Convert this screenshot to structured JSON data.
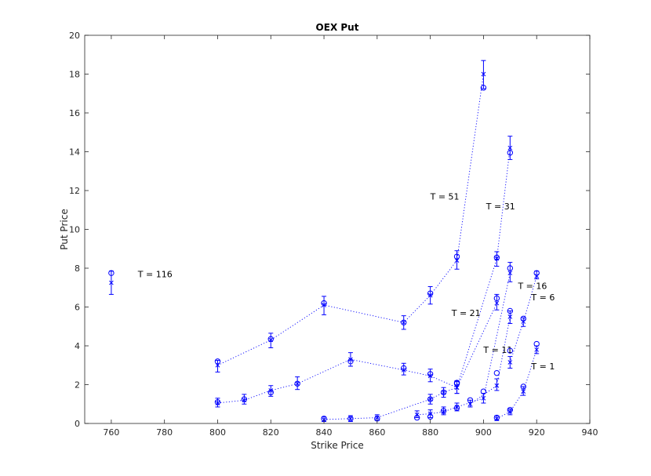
{
  "chart_data": {
    "type": "scatter",
    "title": "OEX Put",
    "xlabel": "Strike Price",
    "ylabel": "Put Price",
    "xlim": [
      750,
      940
    ],
    "ylim": [
      0,
      20
    ],
    "xticks": [
      760,
      780,
      800,
      820,
      840,
      860,
      880,
      900,
      920,
      940
    ],
    "yticks": [
      0,
      2,
      4,
      6,
      8,
      10,
      12,
      14,
      16,
      18,
      20
    ],
    "grid": false,
    "color": "#0000ff",
    "series": [
      {
        "label": "T = 116",
        "strikes": [
          760
        ],
        "observed": [
          7.75
        ],
        "model": [
          7.25
        ],
        "err_low": [
          6.65
        ],
        "err_high": [
          7.85
        ],
        "label_at": [
          770,
          7.7
        ]
      },
      {
        "label": "T = 51",
        "strikes": [
          800,
          820,
          840,
          870,
          880,
          890,
          900
        ],
        "observed": [
          3.2,
          4.35,
          6.2,
          5.2,
          6.7,
          8.6,
          17.3
        ],
        "model": [
          3.0,
          4.3,
          6.1,
          5.2,
          6.6,
          8.4,
          18.0
        ],
        "err_low": [
          2.65,
          3.9,
          5.6,
          4.85,
          6.15,
          7.95,
          17.25
        ],
        "err_high": [
          3.25,
          4.65,
          6.55,
          5.55,
          7.05,
          8.9,
          18.7
        ],
        "label_at": [
          880,
          11.7
        ]
      },
      {
        "label": "T = 31",
        "strikes": [
          800,
          810,
          820,
          830,
          850,
          870,
          880,
          890,
          905,
          910
        ],
        "observed": [
          1.1,
          1.25,
          1.6,
          2.05,
          3.2,
          2.85,
          2.55,
          2.1,
          8.55,
          13.95
        ],
        "model": [
          1.05,
          1.2,
          1.7,
          2.05,
          3.3,
          2.75,
          2.45,
          1.85,
          8.5,
          14.2
        ],
        "err_low": [
          0.85,
          1.0,
          1.4,
          1.75,
          2.95,
          2.5,
          2.15,
          1.55,
          8.1,
          13.6
        ],
        "err_high": [
          1.3,
          1.5,
          1.95,
          2.4,
          3.65,
          3.1,
          2.8,
          2.2,
          8.85,
          14.8
        ],
        "label_at": [
          901,
          11.2
        ]
      },
      {
        "label": "T = 21",
        "strikes": [
          840,
          850,
          860,
          880,
          885,
          890,
          905
        ],
        "observed": [
          0.25,
          0.25,
          0.25,
          1.25,
          1.6,
          2.05,
          6.45
        ],
        "model": [
          0.2,
          0.25,
          0.3,
          1.25,
          1.6,
          1.85,
          6.2
        ],
        "err_low": [
          0.1,
          0.1,
          0.15,
          1.0,
          1.35,
          1.55,
          5.85
        ],
        "err_high": [
          0.35,
          0.4,
          0.45,
          1.5,
          1.85,
          2.2,
          6.65
        ],
        "label_at": [
          888,
          5.7
        ]
      },
      {
        "label": "T = 16",
        "strikes": [
          875,
          880,
          885,
          890,
          900,
          910
        ],
        "observed": [
          0.3,
          0.35,
          0.65,
          0.8,
          1.65,
          8.0
        ],
        "model": [
          0.45,
          0.5,
          0.6,
          0.85,
          1.3,
          7.75
        ],
        "err_low": [
          0.3,
          0.3,
          0.45,
          0.65,
          1.05,
          7.3
        ],
        "err_high": [
          0.65,
          0.7,
          0.85,
          1.05,
          1.55,
          8.3
        ],
        "label_at": [
          913,
          7.1
        ]
      },
      {
        "label": "T = 11",
        "strikes": [
          895,
          905,
          910
        ],
        "observed": [
          1.2,
          2.6,
          5.8
        ],
        "model": [
          1.0,
          1.95,
          5.5
        ],
        "err_low": [
          0.85,
          1.7,
          5.15
        ],
        "err_high": [
          1.2,
          2.3,
          5.8
        ],
        "label_at": [
          900,
          3.8
        ]
      },
      {
        "label": "T = 6",
        "strikes": [
          910,
          915,
          920
        ],
        "observed": [
          3.75,
          5.4,
          7.75
        ],
        "model": [
          3.15,
          5.25,
          7.6
        ],
        "err_low": [
          2.85,
          5.0,
          7.45
        ],
        "err_high": [
          3.45,
          5.45,
          7.85
        ],
        "label_at": [
          918,
          6.5
        ]
      },
      {
        "label": "T = 1",
        "strikes": [
          905,
          910,
          915,
          920
        ],
        "observed": [
          0.3,
          0.7,
          1.9,
          4.1
        ],
        "model": [
          0.25,
          0.6,
          1.65,
          3.8
        ],
        "err_low": [
          0.15,
          0.45,
          1.45,
          3.6
        ],
        "err_high": [
          0.4,
          0.75,
          1.9,
          4.0
        ],
        "label_at": [
          918,
          2.95
        ]
      }
    ]
  }
}
